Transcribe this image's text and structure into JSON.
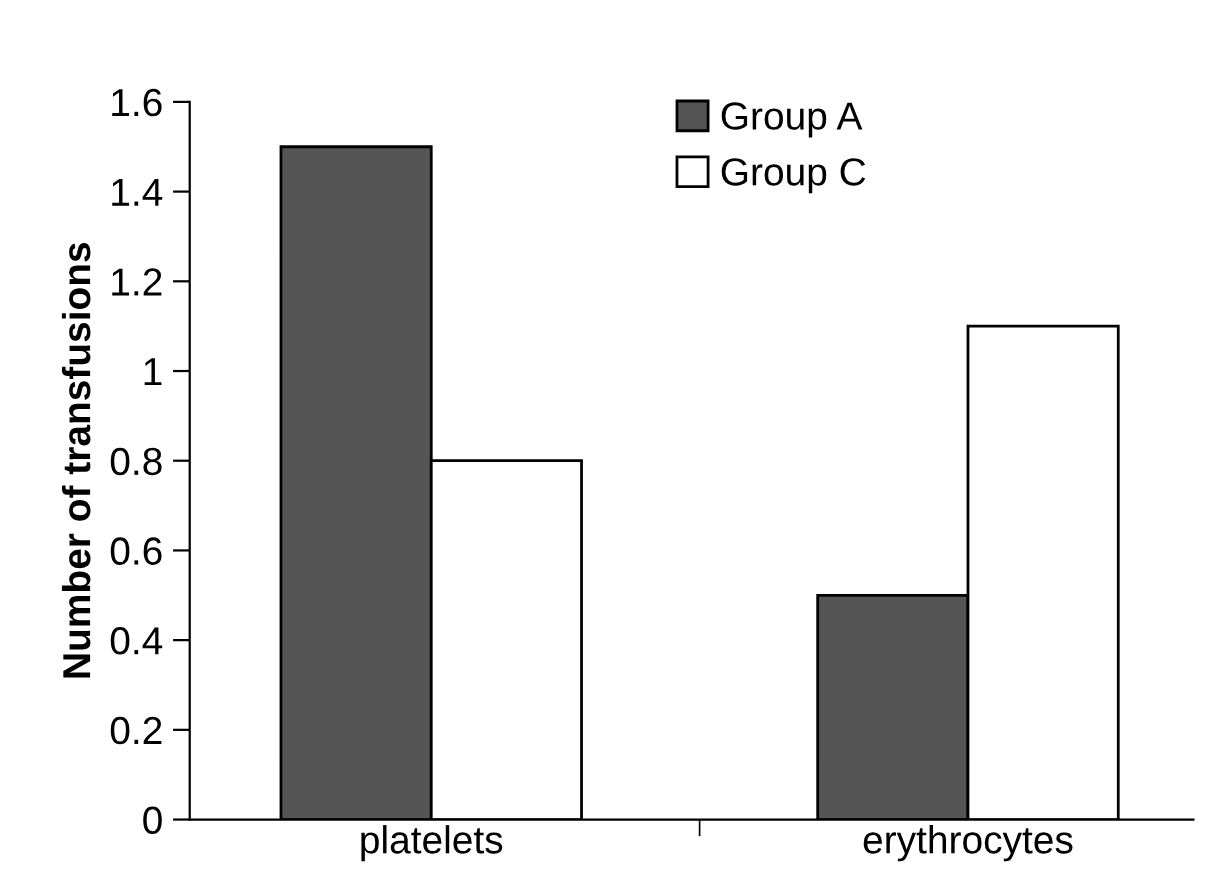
{
  "chart_data": {
    "type": "bar",
    "ylabel": "Number of transfusions",
    "categories": [
      "platelets",
      "erythrocytes"
    ],
    "series": [
      {
        "name": "Group A",
        "color": "#555555",
        "values": [
          1.5,
          0.5
        ]
      },
      {
        "name": "Group C",
        "color": "#ffffff",
        "values": [
          0.8,
          1.1
        ]
      }
    ],
    "ylim": [
      0,
      1.6
    ],
    "yticks": [
      0,
      0.2,
      0.4,
      0.6,
      0.8,
      1,
      1.2,
      1.4,
      1.6
    ],
    "grid": false,
    "legend": "top"
  }
}
